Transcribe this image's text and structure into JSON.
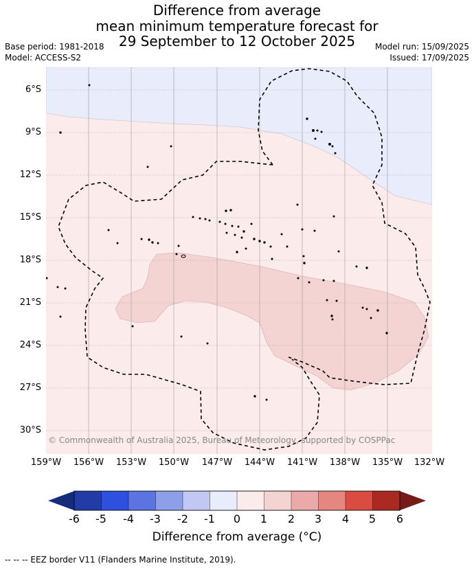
{
  "header": {
    "title_line1": "Difference from average",
    "title_line2": "mean minimum temperature forecast for",
    "title_line3": "29 September to 12 October 2025",
    "base_period": "Base period: 1981-2018",
    "model": "Model: ACCESS-S2",
    "model_run": "Model run: 15/09/2025",
    "issued": "Issued: 17/09/2025"
  },
  "map": {
    "lat_labels": [
      "6°S",
      "9°S",
      "12°S",
      "15°S",
      "18°S",
      "21°S",
      "24°S",
      "27°S",
      "30°S"
    ],
    "lon_labels": [
      "159°W",
      "156°W",
      "153°W",
      "150°W",
      "147°W",
      "144°W",
      "141°W",
      "138°W",
      "135°W",
      "132°W"
    ],
    "copyright": "© Commonwealth of Australia 2025, Bureau of Meteorology, supported by COSPPac",
    "colors": {
      "cool_0_1": "#e8ecfb",
      "warm_0_1": "#fbebea",
      "warm_1_2": "#f4d3d3",
      "grid": "#999999"
    }
  },
  "colorbar": {
    "ticks": [
      "-6",
      "-5",
      "-4",
      "-3",
      "-2",
      "-1",
      "0",
      "1",
      "2",
      "3",
      "4",
      "5",
      "6"
    ],
    "colors": [
      "#233ba7",
      "#2f4fde",
      "#5b74e1",
      "#8d9fe8",
      "#c0c8f3",
      "#e8ecfb",
      "#fbebea",
      "#f4d3d3",
      "#eca9a9",
      "#e68680",
      "#da4b42",
      "#aa2a22"
    ],
    "under_color": "#152c7b",
    "over_color": "#761b17",
    "title": "Difference from average (°C)"
  },
  "footnote": "-- -- -- EEZ border V11 (Flanders Marine Institute, 2019)."
}
